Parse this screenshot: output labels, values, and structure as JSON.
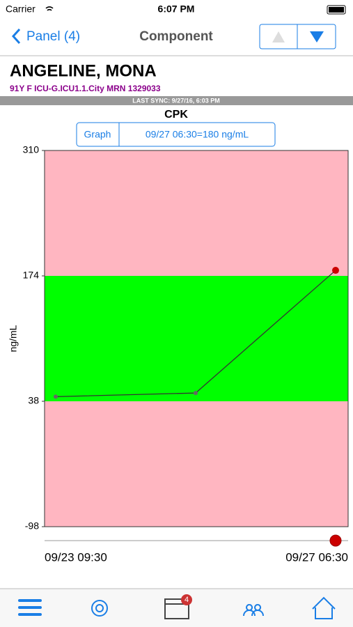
{
  "status_bar": {
    "carrier": "Carrier",
    "time": "6:07 PM"
  },
  "nav_bar": {
    "back": "Panel (4)",
    "title": "Component"
  },
  "patient": {
    "name": "ANGELINE, MONA",
    "details": "91Y F ICU-G.ICU1.1.City MRN 1329033",
    "sync": "LAST SYNC: 9/27/16, 6:03 PM"
  },
  "selector": {
    "mode": "Graph",
    "reading": "09/27 06:30=180 ng/mL"
  },
  "tab_bar": {
    "badge": "4"
  },
  "chart_data": {
    "type": "line",
    "title": "CPK",
    "y_label": "ng/mL",
    "categories": [
      "09/23 09:30",
      null,
      "09/27 06:30"
    ],
    "values": [
      43,
      47,
      180
    ],
    "color": "#333333",
    "selected_color": "#cc0000",
    "ylim": [
      -98,
      310
    ],
    "yticks": [
      -98,
      38,
      174,
      310
    ],
    "normal_range": [
      38,
      174
    ],
    "normal_color": "#00ff00",
    "abnormal_color": "#ffb6c1"
  }
}
